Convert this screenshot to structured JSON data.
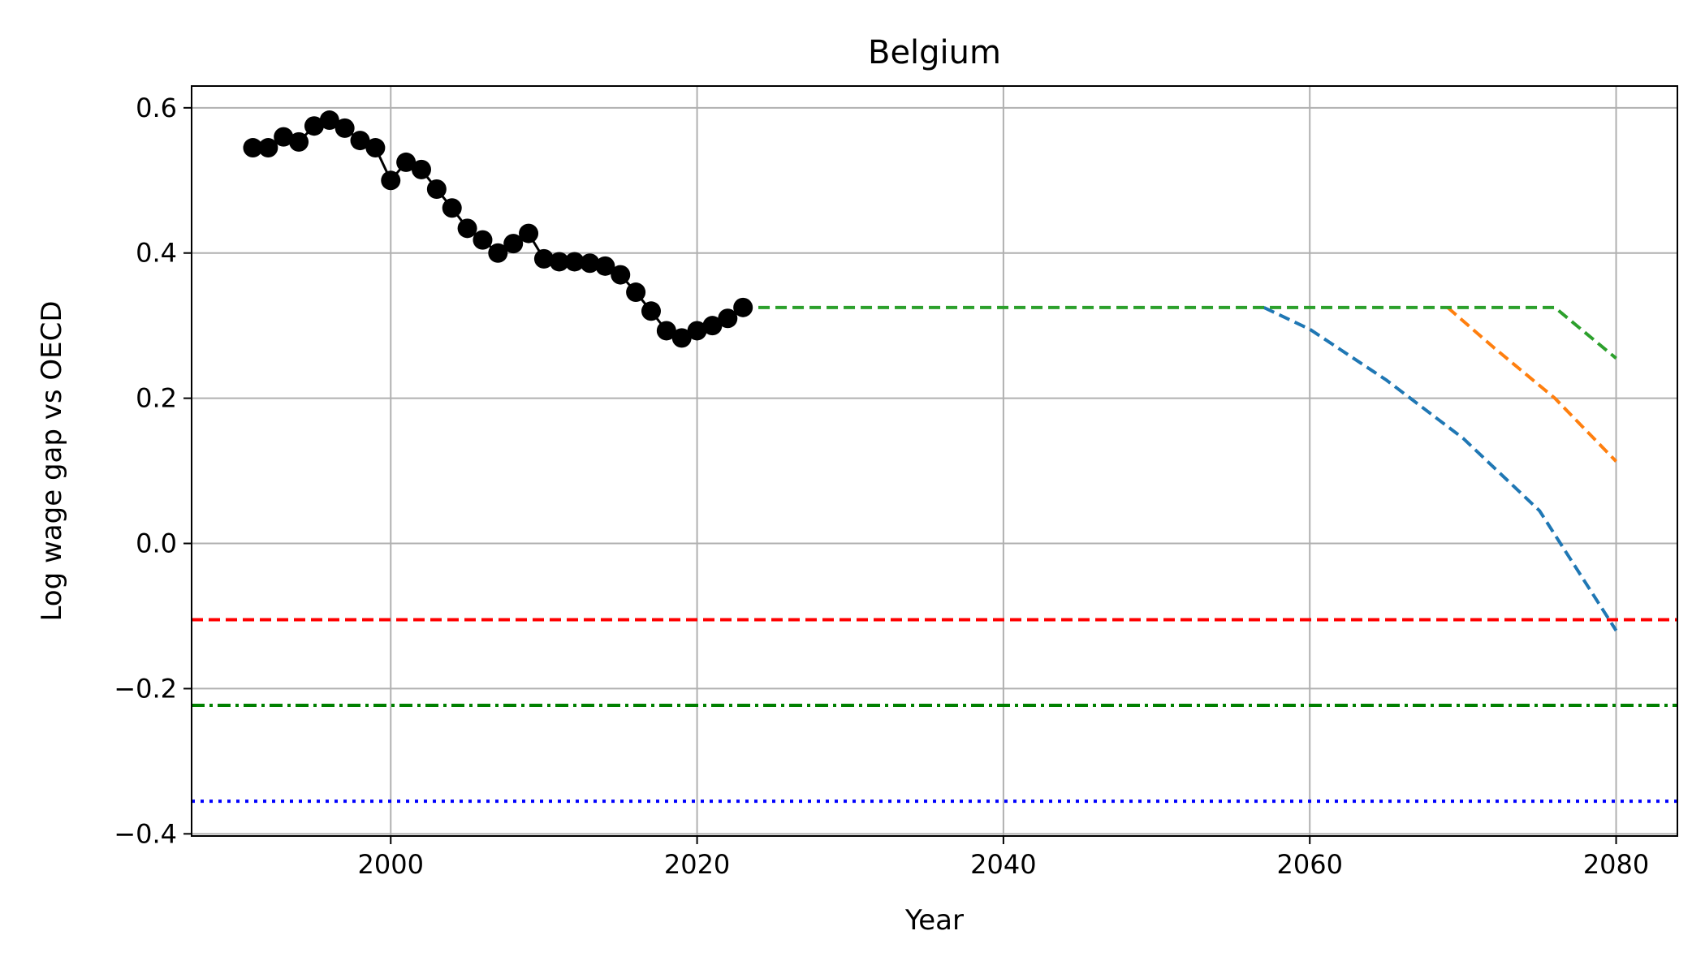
{
  "chart_data": {
    "type": "line",
    "title": "Belgium",
    "xlabel": "Year",
    "ylabel": "Log wage gap vs OECD",
    "xlim": [
      1987,
      2084
    ],
    "ylim": [
      -0.403,
      0.63
    ],
    "grid": true,
    "x_ticks": [
      2000,
      2020,
      2040,
      2060,
      2080
    ],
    "x_tick_labels": [
      "2000",
      "2020",
      "2040",
      "2060",
      "2080"
    ],
    "y_ticks": [
      -0.4,
      -0.2,
      0.0,
      0.2,
      0.4,
      0.6
    ],
    "y_tick_labels": [
      "−0.4",
      "−0.2",
      "0.0",
      "0.2",
      "0.4",
      "0.6"
    ],
    "historical": {
      "color": "#000000",
      "x": [
        1991,
        1992,
        1993,
        1994,
        1995,
        1996,
        1997,
        1998,
        1999,
        2000,
        2001,
        2002,
        2003,
        2004,
        2005,
        2006,
        2007,
        2008,
        2009,
        2010,
        2011,
        2012,
        2013,
        2014,
        2015,
        2016,
        2017,
        2018,
        2019,
        2020,
        2021,
        2022,
        2023
      ],
      "y": [
        0.545,
        0.545,
        0.56,
        0.553,
        0.575,
        0.583,
        0.572,
        0.555,
        0.545,
        0.5,
        0.525,
        0.515,
        0.488,
        0.462,
        0.434,
        0.418,
        0.4,
        0.413,
        0.427,
        0.392,
        0.388,
        0.388,
        0.386,
        0.382,
        0.37,
        0.346,
        0.32,
        0.293,
        0.283,
        0.293,
        0.3,
        0.31,
        0.325
      ]
    },
    "projections": [
      {
        "color": "#1f77b4",
        "x": [
          2057,
          2060,
          2065,
          2070,
          2075,
          2080
        ],
        "y": [
          0.325,
          0.295,
          0.225,
          0.145,
          0.045,
          -0.12
        ]
      },
      {
        "color": "#ff7f0e",
        "x": [
          2069,
          2072,
          2076,
          2080
        ],
        "y": [
          0.325,
          0.27,
          0.2,
          0.113
        ]
      },
      {
        "color": "#2ca02c",
        "x": [
          2024,
          2076,
          2080
        ],
        "y": [
          0.325,
          0.325,
          0.255
        ]
      }
    ],
    "reference_lines": [
      {
        "y": -0.105,
        "color": "#ff0000",
        "style": "dashed"
      },
      {
        "y": -0.223,
        "color": "#008000",
        "style": "dashdot"
      },
      {
        "y": -0.355,
        "color": "#0000ff",
        "style": "dotted"
      }
    ]
  }
}
